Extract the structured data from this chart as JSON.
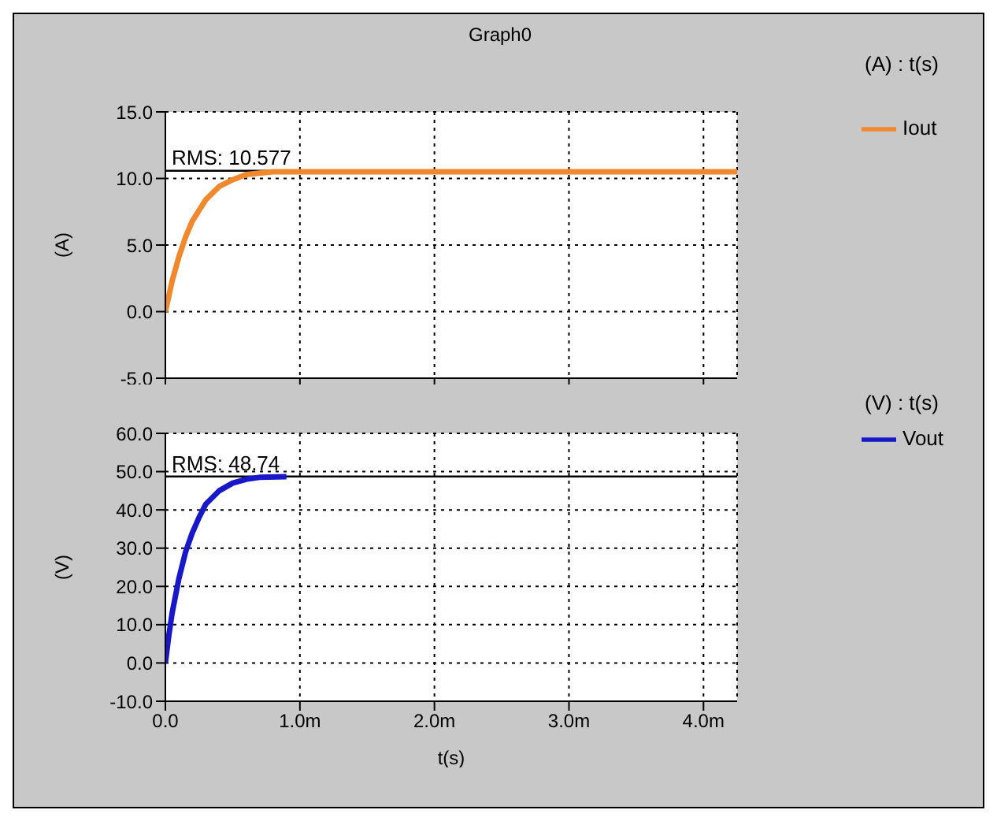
{
  "chart_data": [
    {
      "type": "line",
      "title": "Graph0",
      "ylabel": "(A)",
      "legend_title": "(A) : t(s)",
      "legend": "right",
      "grid": true,
      "marker": "none",
      "line_style": "solid",
      "tick_labels": "y",
      "xlim": [
        0,
        4.25
      ],
      "xticks": [
        0,
        1,
        2,
        3,
        4
      ],
      "ylim": [
        -5,
        15
      ],
      "yticks": [
        {
          "value": -5,
          "label": "-5.0"
        },
        {
          "value": 0,
          "label": "0.0"
        },
        {
          "value": 5,
          "label": "5.0"
        },
        {
          "value": 10,
          "label": "10.0"
        },
        {
          "value": 15,
          "label": "15.0"
        }
      ],
      "ref_lines": [
        {
          "axis": "y",
          "value": 10.577,
          "label": "RMS: 10.577",
          "color": "#000000"
        }
      ],
      "series": [
        {
          "name": "Iout",
          "color": "#f0882e",
          "x": [
            0,
            0.05,
            0.1,
            0.15,
            0.2,
            0.3,
            0.4,
            0.5,
            0.6,
            0.8,
            1,
            4.25
          ],
          "values": [
            0,
            2.3,
            4.1,
            5.6,
            6.8,
            8.4,
            9.4,
            9.9,
            10.3,
            10.5,
            10.5,
            10.5
          ]
        }
      ]
    },
    {
      "type": "line",
      "xlabel": "t(s)",
      "ylabel": "(V)",
      "legend_title": "(V) : t(s)",
      "legend": "right",
      "grid": true,
      "marker": "none",
      "line_style": "solid",
      "xlim": [
        0,
        4.25
      ],
      "xticks": [
        {
          "value": 0,
          "label": "0.0"
        },
        {
          "value": 1,
          "label": "1.0m"
        },
        {
          "value": 2,
          "label": "2.0m"
        },
        {
          "value": 3,
          "label": "3.0m"
        },
        {
          "value": 4,
          "label": "4.0m"
        }
      ],
      "ylim": [
        -10,
        60
      ],
      "yticks": [
        {
          "value": -10,
          "label": "-10.0"
        },
        {
          "value": 0,
          "label": "0.0"
        },
        {
          "value": 10,
          "label": "10.0"
        },
        {
          "value": 20,
          "label": "20.0"
        },
        {
          "value": 30,
          "label": "30.0"
        },
        {
          "value": 40,
          "label": "40.0"
        },
        {
          "value": 50,
          "label": "50.0"
        },
        {
          "value": 60,
          "label": "60.0"
        }
      ],
      "ref_lines": [
        {
          "axis": "y",
          "value": 48.74,
          "label": "RMS: 48.74",
          "color": "#000000"
        }
      ],
      "series": [
        {
          "name": "Vout",
          "color": "#1818c8",
          "x": [
            0,
            0.025,
            0.05,
            0.1,
            0.15,
            0.2,
            0.25,
            0.3,
            0.4,
            0.5,
            0.6,
            0.7,
            0.9
          ],
          "values": [
            0,
            7,
            13,
            22,
            29,
            34,
            38,
            41.5,
            45,
            47,
            48,
            48.5,
            48.7
          ]
        }
      ]
    }
  ]
}
